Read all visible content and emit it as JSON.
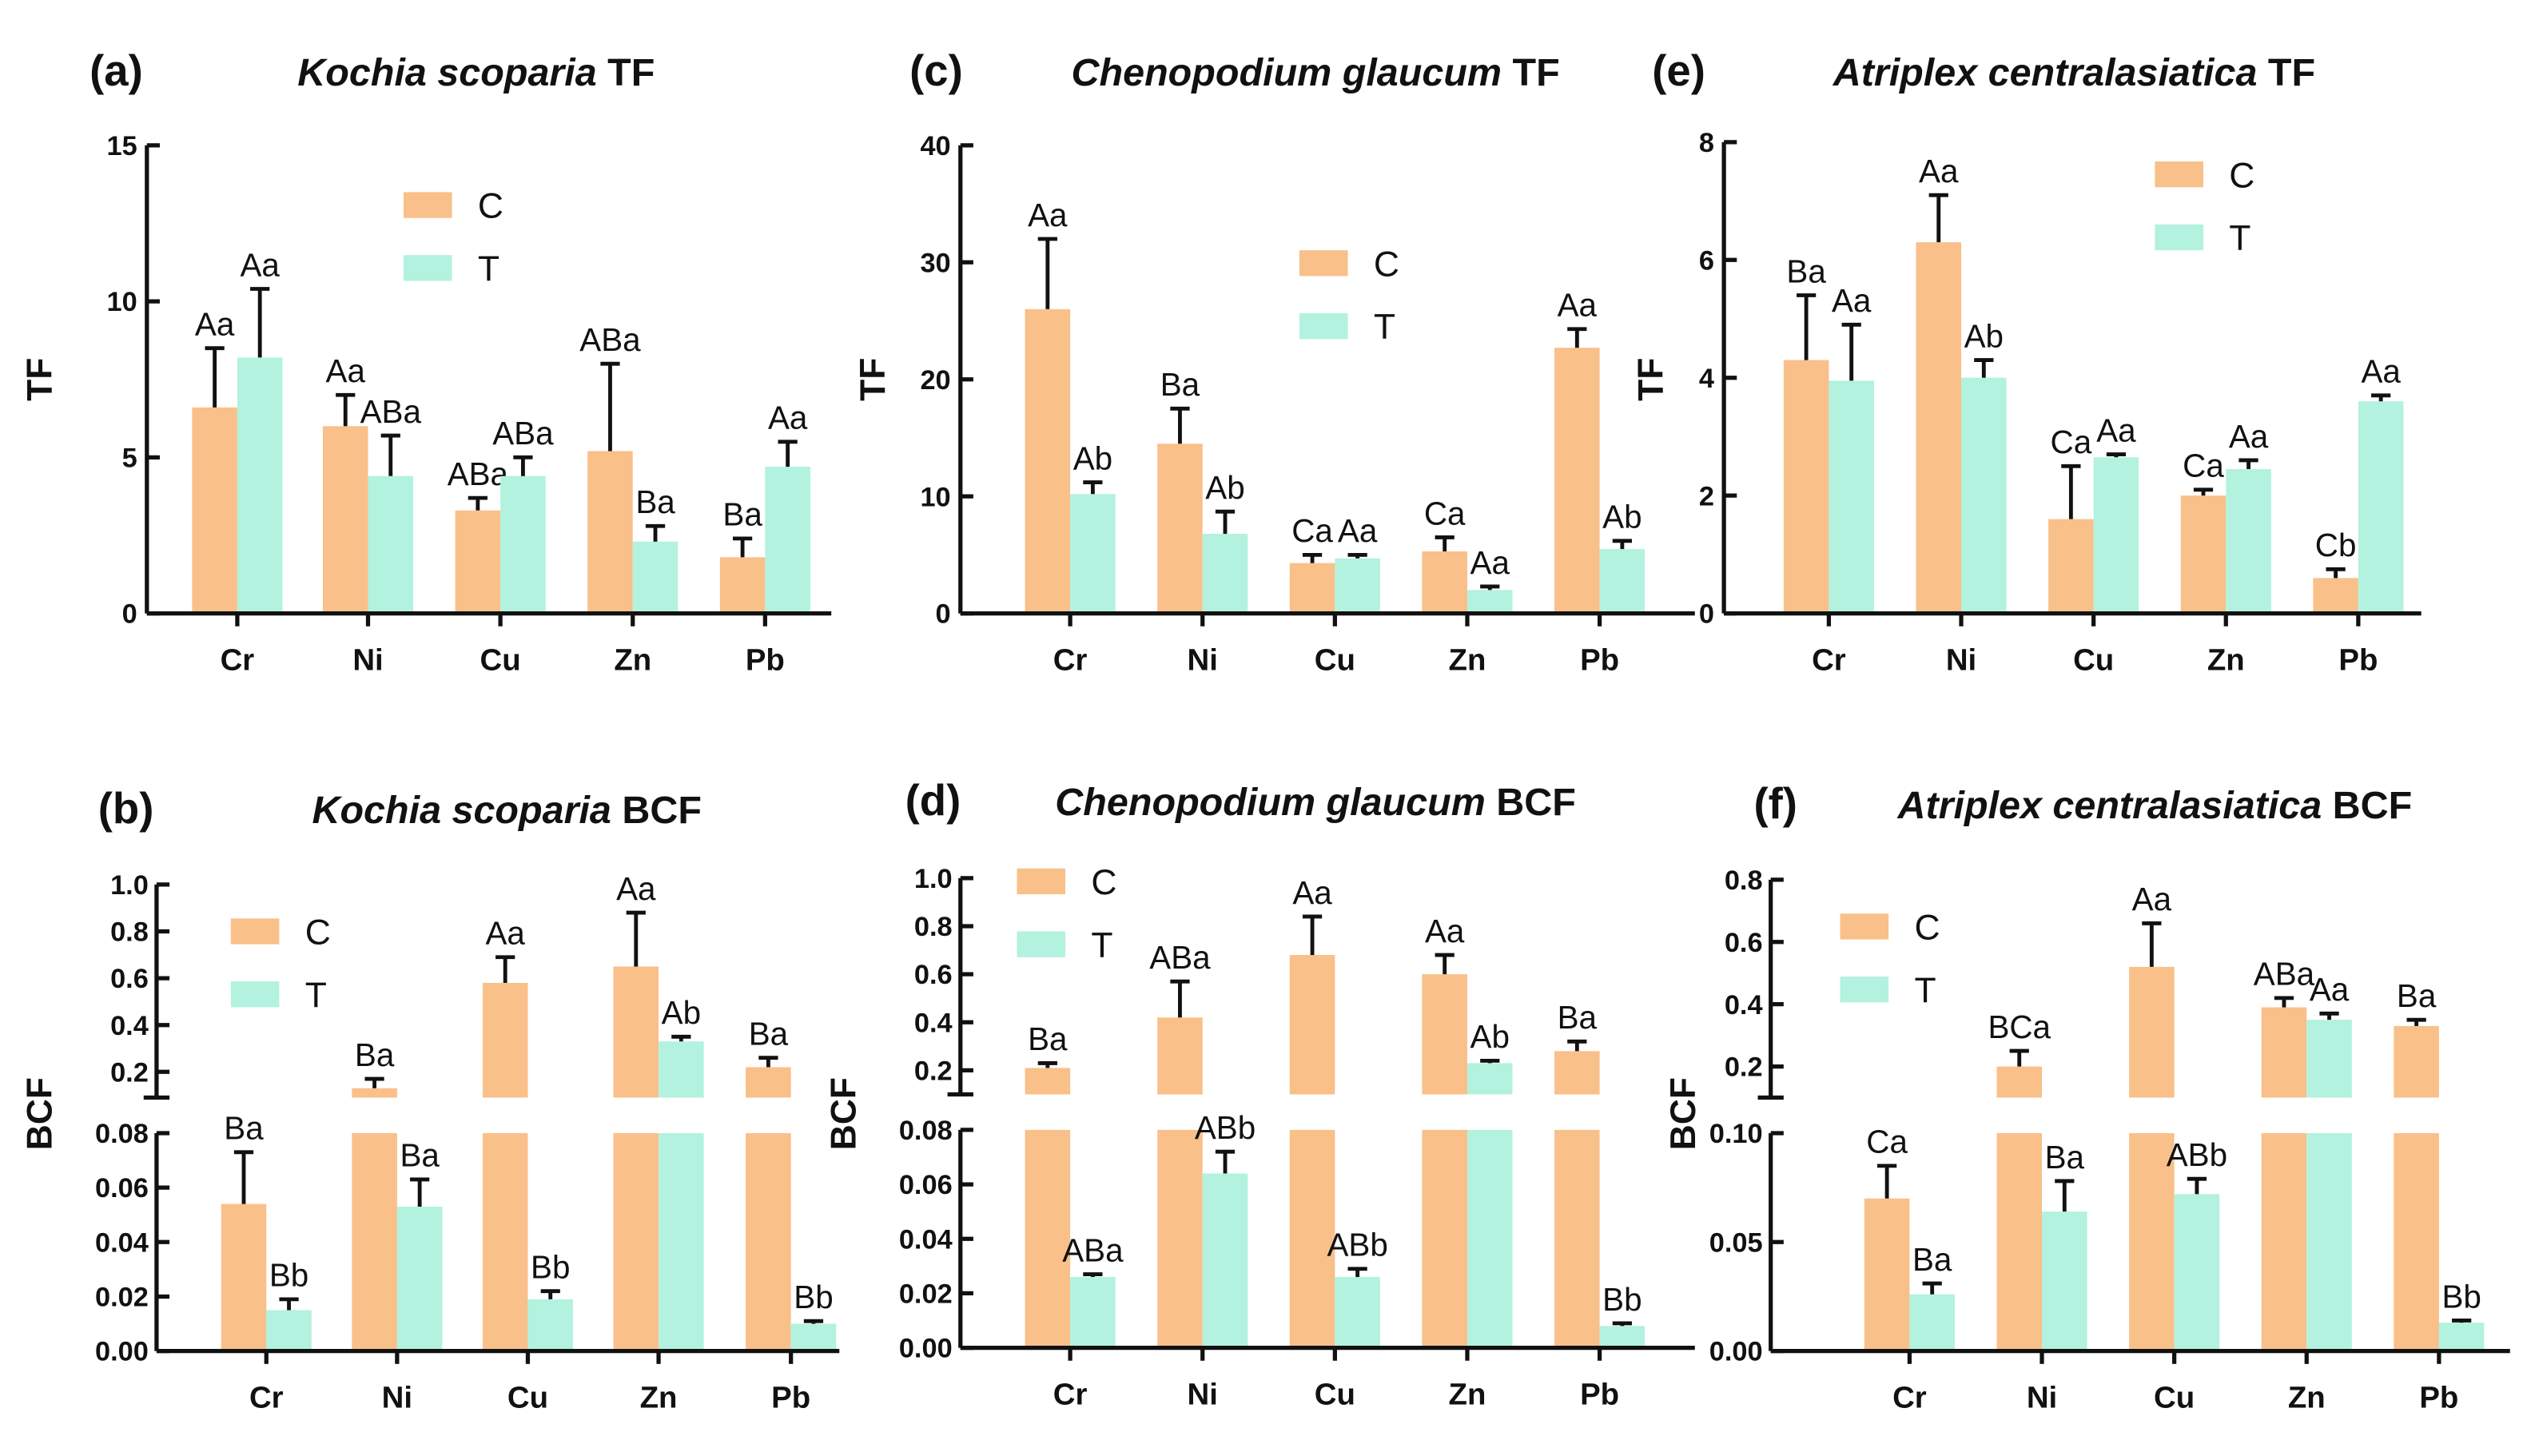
{
  "colors": {
    "C": "#F9C08A",
    "T": "#B3F2DE"
  },
  "chart_data": [
    {
      "id": "a",
      "type": "bar",
      "panel_label": "(a)",
      "species": "Kochia scoparia",
      "metric": "TF",
      "ylabel": "TF",
      "xlabel": "",
      "categories": [
        "Cr",
        "Ni",
        "Cu",
        "Zn",
        "Pb"
      ],
      "ylim": [
        0,
        15
      ],
      "yticks": [
        "0",
        "5",
        "10",
        "15"
      ],
      "legend": [
        "C",
        "T"
      ],
      "legend_position": "top-center",
      "series": [
        {
          "name": "C",
          "values": [
            6.6,
            6.0,
            3.3,
            5.2,
            1.8
          ],
          "error_top": [
            8.5,
            7.0,
            3.7,
            8.0,
            2.4
          ],
          "letters": [
            "Aa",
            "Aa",
            "ABa",
            "ABa",
            "Ba"
          ]
        },
        {
          "name": "T",
          "values": [
            8.2,
            4.4,
            4.4,
            2.3,
            4.7
          ],
          "error_top": [
            10.4,
            5.7,
            5.0,
            2.8,
            5.5
          ],
          "letters": [
            "Aa",
            "ABa",
            "ABa",
            "Ba",
            "Aa"
          ]
        }
      ]
    },
    {
      "id": "b",
      "type": "bar",
      "panel_label": "(b)",
      "species": "Kochia scoparia",
      "metric": "BCF",
      "ylabel": "BCF",
      "xlabel": "",
      "categories": [
        "Cr",
        "Ni",
        "Cu",
        "Zn",
        "Pb"
      ],
      "broken_axis": true,
      "ylim_upper": [
        0.09,
        1.0
      ],
      "yticks_upper": [
        "0.2",
        "0.4",
        "0.6",
        "0.8",
        "1.0"
      ],
      "ylim_lower": [
        0,
        0.08
      ],
      "yticks_lower": [
        "0.00",
        "0.02",
        "0.04",
        "0.06",
        "0.08"
      ],
      "legend": [
        "C",
        "T"
      ],
      "legend_position": "top-left",
      "series": [
        {
          "name": "C",
          "values": [
            0.054,
            0.13,
            0.58,
            0.65,
            0.22
          ],
          "error_top": [
            0.073,
            0.17,
            0.69,
            0.88,
            0.26
          ],
          "letters": [
            "Ba",
            "Ba",
            "Aa",
            "Aa",
            "Ba"
          ]
        },
        {
          "name": "T",
          "values": [
            0.015,
            0.053,
            0.019,
            0.33,
            0.01
          ],
          "error_top": [
            0.019,
            0.063,
            0.022,
            0.35,
            0.011
          ],
          "letters": [
            "Bb",
            "Ba",
            "Bb",
            "Ab",
            "Bb"
          ]
        }
      ]
    },
    {
      "id": "c",
      "type": "bar",
      "panel_label": "(c)",
      "species": "Chenopodium glaucum",
      "metric": "TF",
      "ylabel": "TF",
      "xlabel": "",
      "categories": [
        "Cr",
        "Ni",
        "Cu",
        "Zn",
        "Pb"
      ],
      "ylim": [
        0,
        40
      ],
      "yticks": [
        "0",
        "10",
        "20",
        "30",
        "40"
      ],
      "legend": [
        "C",
        "T"
      ],
      "legend_position": "top-center",
      "series": [
        {
          "name": "C",
          "values": [
            26.0,
            14.5,
            4.3,
            5.3,
            22.7
          ],
          "error_top": [
            32.0,
            17.5,
            5.0,
            6.5,
            24.3
          ],
          "letters": [
            "Aa",
            "Ba",
            "Ca",
            "Ca",
            "Aa"
          ]
        },
        {
          "name": "T",
          "values": [
            10.2,
            6.8,
            4.7,
            2.0,
            5.5
          ],
          "error_top": [
            11.2,
            8.7,
            5.0,
            2.3,
            6.2
          ],
          "letters": [
            "Ab",
            "Ab",
            "Aa",
            "Aa",
            "Ab"
          ]
        }
      ]
    },
    {
      "id": "d",
      "type": "bar",
      "panel_label": "(d)",
      "species": "Chenopodium glaucum",
      "metric": "BCF",
      "ylabel": "BCF",
      "xlabel": "",
      "categories": [
        "Cr",
        "Ni",
        "Cu",
        "Zn",
        "Pb"
      ],
      "broken_axis": true,
      "ylim_upper": [
        0.1,
        1.0
      ],
      "yticks_upper": [
        "0.2",
        "0.4",
        "0.6",
        "0.8",
        "1.0"
      ],
      "ylim_lower": [
        0,
        0.08
      ],
      "yticks_lower": [
        "0.00",
        "0.02",
        "0.04",
        "0.06",
        "0.08"
      ],
      "legend": [
        "C",
        "T"
      ],
      "legend_position": "top-left",
      "series": [
        {
          "name": "C",
          "values": [
            0.21,
            0.42,
            0.68,
            0.6,
            0.28
          ],
          "error_top": [
            0.23,
            0.57,
            0.84,
            0.68,
            0.32
          ],
          "letters": [
            "Ba",
            "ABa",
            "Aa",
            "Aa",
            "Ba"
          ]
        },
        {
          "name": "T",
          "values": [
            0.026,
            0.064,
            0.026,
            0.23,
            0.008
          ],
          "error_top": [
            0.027,
            0.072,
            0.029,
            0.24,
            0.009
          ],
          "letters": [
            "ABa",
            "ABb",
            "ABb",
            "Ab",
            "Bb"
          ]
        }
      ]
    },
    {
      "id": "e",
      "type": "bar",
      "panel_label": "(e)",
      "species": "Atriplex centralasiatica",
      "metric": "TF",
      "ylabel": "TF",
      "xlabel": "",
      "categories": [
        "Cr",
        "Ni",
        "Cu",
        "Zn",
        "Pb"
      ],
      "ylim": [
        0,
        8
      ],
      "yticks": [
        "0",
        "2",
        "4",
        "6",
        "8"
      ],
      "legend": [
        "C",
        "T"
      ],
      "legend_position": "top-right",
      "series": [
        {
          "name": "C",
          "values": [
            4.3,
            6.3,
            1.6,
            2.0,
            0.6
          ],
          "error_top": [
            5.4,
            7.1,
            2.5,
            2.1,
            0.75
          ],
          "letters": [
            "Ba",
            "Aa",
            "Ca",
            "Ca",
            "Cb"
          ]
        },
        {
          "name": "T",
          "values": [
            3.95,
            4.0,
            2.65,
            2.45,
            3.6
          ],
          "error_top": [
            4.9,
            4.3,
            2.7,
            2.6,
            3.7
          ],
          "letters": [
            "Aa",
            "Ab",
            "Aa",
            "Aa",
            "Aa"
          ]
        }
      ]
    },
    {
      "id": "f",
      "type": "bar",
      "panel_label": "(f)",
      "species": "Atriplex centralasiatica",
      "metric": "BCF",
      "ylabel": "BCF",
      "xlabel": "",
      "categories": [
        "Cr",
        "Ni",
        "Cu",
        "Zn",
        "Pb"
      ],
      "broken_axis": true,
      "ylim_upper": [
        0.1,
        0.8
      ],
      "yticks_upper": [
        "0.2",
        "0.4",
        "0.6",
        "0.8"
      ],
      "ylim_lower": [
        0,
        0.1
      ],
      "yticks_lower": [
        "0.00",
        "0.05",
        "0.10"
      ],
      "legend": [
        "C",
        "T"
      ],
      "legend_position": "top-left",
      "series": [
        {
          "name": "C",
          "values": [
            0.07,
            0.2,
            0.52,
            0.39,
            0.33
          ],
          "error_top": [
            0.085,
            0.25,
            0.66,
            0.42,
            0.35
          ],
          "letters": [
            "Ca",
            "BCa",
            "Aa",
            "ABa",
            "Ba"
          ]
        },
        {
          "name": "T",
          "values": [
            0.026,
            0.064,
            0.072,
            0.35,
            0.013
          ],
          "error_top": [
            0.031,
            0.078,
            0.079,
            0.37,
            0.014
          ],
          "letters": [
            "Ba",
            "Ba",
            "ABb",
            "Aa",
            "Bb"
          ]
        }
      ]
    }
  ]
}
